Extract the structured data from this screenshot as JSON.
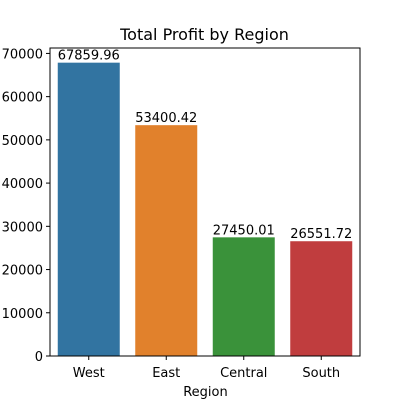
{
  "chart_data": {
    "type": "bar",
    "title": "Total Profit by Region",
    "xlabel": "Region",
    "ylabel": "",
    "categories": [
      "West",
      "East",
      "Central",
      "South"
    ],
    "values": [
      67859.96,
      53400.42,
      27450.01,
      26551.72
    ],
    "value_labels": [
      "67859.96",
      "53400.42",
      "27450.01",
      "26551.72"
    ],
    "colors": [
      "#3274a1",
      "#e1812c",
      "#3a923a",
      "#c03d3e"
    ],
    "ylim": [
      0,
      71252.96
    ],
    "yticks": [
      0,
      10000,
      20000,
      30000,
      40000,
      50000,
      60000,
      70000
    ],
    "ytick_labels": [
      "0",
      "10000",
      "20000",
      "30000",
      "40000",
      "50000",
      "60000",
      "70000"
    ],
    "grid": false,
    "legend": "none"
  }
}
